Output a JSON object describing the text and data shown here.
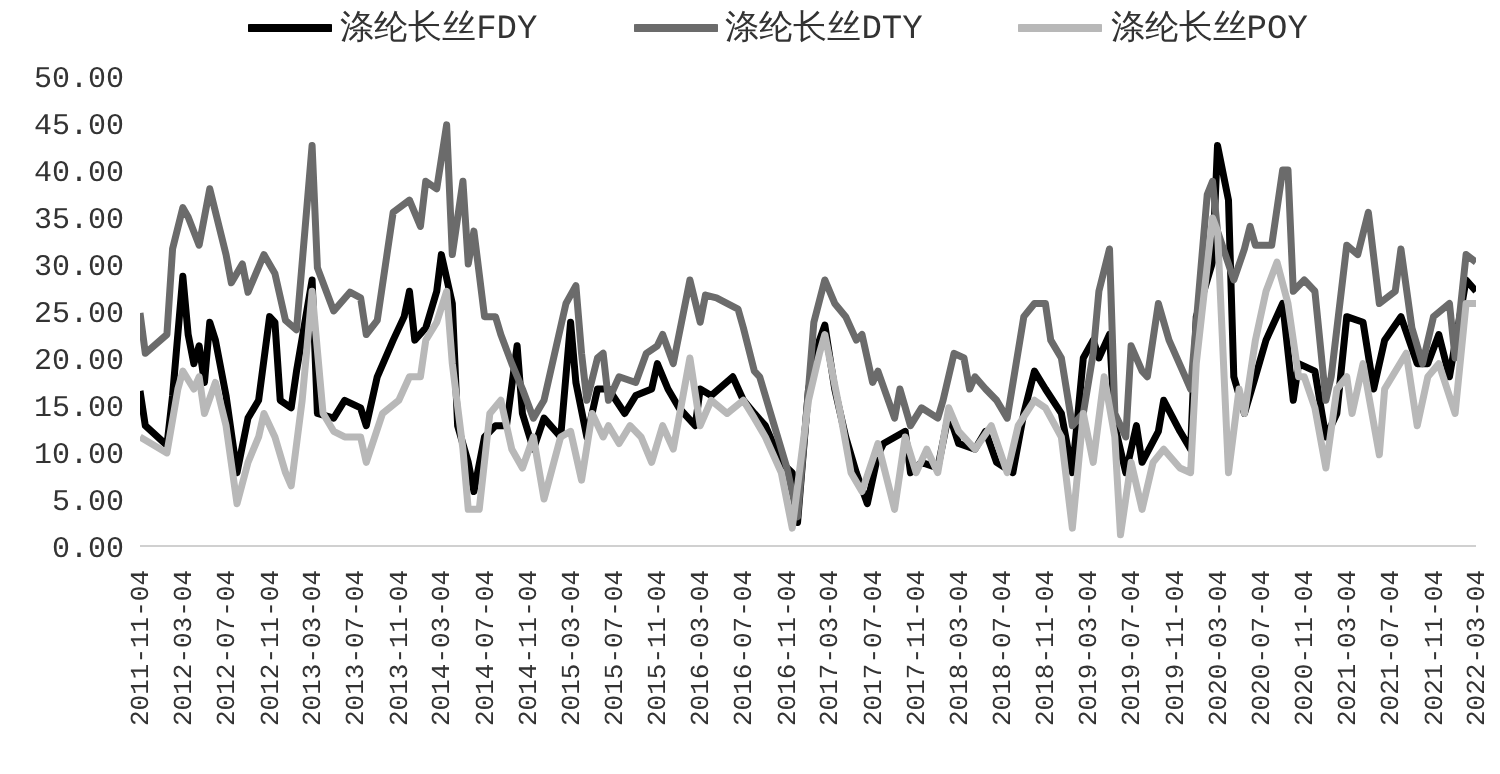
{
  "chart_data": {
    "type": "line",
    "legend": "top",
    "grid": false,
    "marker": "none",
    "line_style": "solid",
    "xlim": [
      "2011-11-04",
      "2022-03-04"
    ],
    "xticks": [
      "2011-11-04",
      "2012-03-04",
      "2012-07-04",
      "2012-11-04",
      "2013-03-04",
      "2013-07-04",
      "2013-11-04",
      "2014-03-04",
      "2014-07-04",
      "2014-11-04",
      "2015-03-04",
      "2015-07-04",
      "2015-11-04",
      "2016-03-04",
      "2016-07-04",
      "2016-11-04",
      "2017-03-04",
      "2017-07-04",
      "2017-11-04",
      "2018-03-04",
      "2018-07-04",
      "2018-11-04",
      "2019-03-04",
      "2019-07-04",
      "2019-11-04",
      "2020-03-04",
      "2020-07-04",
      "2020-11-04",
      "2021-03-04",
      "2021-07-04",
      "2021-11-04",
      "2022-03-04"
    ],
    "ylim": [
      0,
      50
    ],
    "yticks": [
      {
        "value": 0,
        "label": "0.00"
      },
      {
        "value": 5,
        "label": "5.00"
      },
      {
        "value": 10,
        "label": "10.00"
      },
      {
        "value": 15,
        "label": "15.00"
      },
      {
        "value": 20,
        "label": "20.00"
      },
      {
        "value": 25,
        "label": "25.00"
      },
      {
        "value": 30,
        "label": "30.00"
      },
      {
        "value": 35,
        "label": "35.00"
      },
      {
        "value": 40,
        "label": "40.00"
      },
      {
        "value": 45,
        "label": "45.00"
      },
      {
        "value": 50,
        "label": "50.00"
      }
    ],
    "series": [
      {
        "name": "涤纶长丝FDY",
        "color": "#000000",
        "x": [
          "2011-11-04",
          "2011-11-19",
          "2012-01-19",
          "2012-02-04",
          "2012-03-04",
          "2012-03-19",
          "2012-04-04",
          "2012-04-19",
          "2012-05-04",
          "2012-05-19",
          "2012-06-04",
          "2012-07-04",
          "2012-08-04",
          "2012-09-04",
          "2012-10-04",
          "2012-11-04",
          "2012-11-19",
          "2012-12-04",
          "2013-01-04",
          "2013-01-19",
          "2013-03-04",
          "2013-03-19",
          "2013-05-04",
          "2013-06-04",
          "2013-07-19",
          "2013-08-04",
          "2013-09-04",
          "2013-10-19",
          "2013-11-19",
          "2013-12-04",
          "2013-12-19",
          "2014-01-19",
          "2014-02-19",
          "2014-03-04",
          "2014-04-04",
          "2014-04-19",
          "2014-05-19",
          "2014-06-04",
          "2014-07-04",
          "2014-08-04",
          "2014-09-04",
          "2014-10-04",
          "2014-10-19",
          "2014-11-19",
          "2014-12-19",
          "2015-02-04",
          "2015-03-04",
          "2015-03-19",
          "2015-04-19",
          "2015-05-19",
          "2015-06-19",
          "2015-08-04",
          "2015-09-04",
          "2015-10-19",
          "2015-11-04",
          "2015-12-04",
          "2016-01-04",
          "2016-02-19",
          "2016-03-04",
          "2016-04-04",
          "2016-06-04",
          "2016-07-04",
          "2016-08-04",
          "2016-09-04",
          "2016-10-19",
          "2016-11-19",
          "2016-12-04",
          "2017-01-04",
          "2017-02-04",
          "2017-02-19",
          "2017-03-19",
          "2017-04-19",
          "2017-05-19",
          "2017-06-19",
          "2017-07-19",
          "2017-08-04",
          "2017-10-04",
          "2017-10-19",
          "2017-11-19",
          "2018-01-04",
          "2018-02-04",
          "2018-03-04",
          "2018-04-19",
          "2018-05-19",
          "2018-06-19",
          "2018-08-04",
          "2018-09-04",
          "2018-10-04",
          "2018-11-04",
          "2018-12-19",
          "2019-01-19",
          "2019-02-19",
          "2019-03-19",
          "2019-04-04",
          "2019-05-04",
          "2019-05-19",
          "2019-06-19",
          "2019-07-19",
          "2019-08-04",
          "2019-09-19",
          "2019-10-04",
          "2019-11-19",
          "2019-12-19",
          "2020-01-04",
          "2020-02-19",
          "2020-03-04",
          "2020-04-04",
          "2020-04-19",
          "2020-05-19",
          "2020-06-19",
          "2020-07-19",
          "2020-09-04",
          "2020-10-04",
          "2020-10-19",
          "2020-12-04",
          "2021-01-04",
          "2021-02-04",
          "2021-03-04",
          "2021-04-19",
          "2021-05-19",
          "2021-06-19",
          "2021-08-04",
          "2021-09-19",
          "2021-10-19",
          "2021-11-19",
          "2021-12-19",
          "2022-02-04",
          "2022-03-04"
        ],
        "values": [
          16.5,
          12.8,
          10.7,
          16,
          28.7,
          22.5,
          19.4,
          21.3,
          17.4,
          23.8,
          21.9,
          16,
          7.8,
          13.6,
          15.5,
          24.4,
          23.8,
          15.5,
          14.7,
          18.6,
          28.3,
          14.1,
          13.6,
          15.5,
          14.7,
          12.8,
          18,
          21.9,
          24.4,
          27.1,
          21.9,
          23.2,
          27.1,
          31,
          25.8,
          12.8,
          8.9,
          5.8,
          11.6,
          12.8,
          12.8,
          21.3,
          14.1,
          10.3,
          13.6,
          11.6,
          23.8,
          17.4,
          11.6,
          16.7,
          16.7,
          14.1,
          16,
          16.7,
          19.4,
          16.7,
          14.7,
          12.8,
          16.7,
          16,
          18,
          15.5,
          14.1,
          12.8,
          8.9,
          7.8,
          2.5,
          16.7,
          21.9,
          23.5,
          16.7,
          11.6,
          7.8,
          4.5,
          9.7,
          10.9,
          12.2,
          7.8,
          8.9,
          8.3,
          14.1,
          10.9,
          10.3,
          12.2,
          8.9,
          7.8,
          14.1,
          18.6,
          16.7,
          14.1,
          7.8,
          20,
          21.9,
          20,
          22.5,
          12.8,
          7.8,
          12.8,
          8.9,
          12.2,
          15.5,
          12.2,
          10.3,
          24.4,
          30.2,
          42.6,
          36.8,
          18,
          14.1,
          18,
          21.9,
          25.8,
          15.5,
          19.4,
          18.6,
          11.6,
          14.1,
          24.4,
          23.8,
          16.7,
          21.9,
          24.4,
          19.4,
          19.4,
          22.5,
          18,
          28.3,
          27.1
        ]
      },
      {
        "name": "涤纶长丝DTY",
        "color": "#6b6b6b",
        "x": [
          "2011-11-04",
          "2011-11-19",
          "2012-01-19",
          "2012-02-04",
          "2012-03-04",
          "2012-03-19",
          "2012-04-19",
          "2012-05-19",
          "2012-07-04",
          "2012-07-19",
          "2012-08-19",
          "2012-09-04",
          "2012-10-19",
          "2012-11-19",
          "2012-12-19",
          "2013-01-19",
          "2013-03-04",
          "2013-03-19",
          "2013-05-04",
          "2013-06-19",
          "2013-07-19",
          "2013-08-04",
          "2013-09-04",
          "2013-10-19",
          "2013-12-04",
          "2014-01-04",
          "2014-01-19",
          "2014-02-19",
          "2014-03-19",
          "2014-04-04",
          "2014-05-04",
          "2014-05-19",
          "2014-06-04",
          "2014-07-04",
          "2014-08-04",
          "2014-08-19",
          "2014-09-19",
          "2014-10-19",
          "2014-11-19",
          "2014-12-19",
          "2015-02-19",
          "2015-03-19",
          "2015-04-04",
          "2015-04-19",
          "2015-05-19",
          "2015-06-04",
          "2015-06-19",
          "2015-07-19",
          "2015-09-04",
          "2015-10-04",
          "2015-11-04",
          "2015-11-19",
          "2015-12-19",
          "2016-02-04",
          "2016-03-04",
          "2016-03-19",
          "2016-04-19",
          "2016-06-19",
          "2016-07-04",
          "2016-08-04",
          "2016-08-19",
          "2016-10-04",
          "2016-11-04",
          "2016-12-04",
          "2017-01-04",
          "2017-01-19",
          "2017-02-19",
          "2017-03-19",
          "2017-04-19",
          "2017-05-19",
          "2017-06-04",
          "2017-07-04",
          "2017-07-19",
          "2017-09-04",
          "2017-09-19",
          "2017-10-19",
          "2017-11-19",
          "2018-01-04",
          "2018-01-19",
          "2018-02-19",
          "2018-03-19",
          "2018-04-04",
          "2018-04-19",
          "2018-05-19",
          "2018-06-19",
          "2018-07-19",
          "2018-09-04",
          "2018-10-04",
          "2018-11-04",
          "2018-11-19",
          "2018-12-19",
          "2019-01-19",
          "2019-02-19",
          "2019-03-19",
          "2019-04-04",
          "2019-05-04",
          "2019-05-19",
          "2019-06-19",
          "2019-07-04",
          "2019-08-04",
          "2019-08-19",
          "2019-09-19",
          "2019-10-19",
          "2019-12-04",
          "2019-12-19",
          "2020-02-04",
          "2020-02-19",
          "2020-03-04",
          "2020-04-19",
          "2020-05-19",
          "2020-06-04",
          "2020-06-19",
          "2020-08-04",
          "2020-09-04",
          "2020-09-19",
          "2020-10-04",
          "2020-11-04",
          "2020-12-04",
          "2021-01-04",
          "2021-01-19",
          "2021-03-04",
          "2021-04-04",
          "2021-05-04",
          "2021-06-04",
          "2021-07-19",
          "2021-08-04",
          "2021-09-04",
          "2021-10-04",
          "2021-11-04",
          "2021-12-19",
          "2022-01-04",
          "2022-02-04",
          "2022-03-04"
        ],
        "values": [
          24.8,
          20.5,
          22.5,
          31.6,
          36,
          35,
          32,
          38,
          31,
          28,
          30,
          27,
          31,
          29,
          24,
          23,
          42.6,
          29.6,
          25,
          27,
          26.4,
          22.5,
          24,
          35.5,
          36.8,
          34,
          38.8,
          38,
          44.8,
          31,
          38.8,
          30,
          33.5,
          24.4,
          24.4,
          22.5,
          19.4,
          16.7,
          13.6,
          15.5,
          25.8,
          27.7,
          20.5,
          15.5,
          20,
          20.5,
          15.5,
          18,
          17.4,
          20.5,
          21.3,
          22.5,
          19.4,
          28.3,
          23.8,
          26.7,
          26.4,
          25.2,
          23.2,
          18.6,
          18,
          12.2,
          8.3,
          3.1,
          16.7,
          23.8,
          28.3,
          25.8,
          24.4,
          21.9,
          22.5,
          17.4,
          18.6,
          13.6,
          16.7,
          12.8,
          14.7,
          13.6,
          15.5,
          20.5,
          20,
          16.7,
          18,
          16.7,
          15.5,
          13.6,
          24.4,
          25.8,
          25.8,
          21.9,
          20,
          12.8,
          14.1,
          20.5,
          27.1,
          31.6,
          14.1,
          11.6,
          21.3,
          18.6,
          18,
          25.8,
          21.9,
          18,
          16.7,
          37.4,
          38.8,
          33.5,
          28.3,
          31.6,
          34,
          32,
          32,
          40,
          40,
          27.1,
          28.3,
          27.1,
          15.5,
          18,
          32,
          31,
          35.5,
          25.8,
          27.1,
          31.6,
          23.2,
          19.4,
          24.4,
          25.8,
          20,
          31,
          30.2
        ]
      },
      {
        "name": "涤纶长丝POY",
        "color": "#b8b8b8",
        "x": [
          "2011-11-04",
          "2012-01-19",
          "2012-02-19",
          "2012-03-04",
          "2012-04-04",
          "2012-04-19",
          "2012-05-04",
          "2012-06-04",
          "2012-07-04",
          "2012-08-04",
          "2012-09-04",
          "2012-10-04",
          "2012-10-19",
          "2012-11-19",
          "2012-12-19",
          "2013-01-04",
          "2013-02-04",
          "2013-03-04",
          "2013-04-04",
          "2013-05-04",
          "2013-06-04",
          "2013-07-19",
          "2013-08-04",
          "2013-09-19",
          "2013-11-04",
          "2013-12-04",
          "2014-01-04",
          "2014-01-19",
          "2014-02-19",
          "2014-03-19",
          "2014-04-04",
          "2014-05-04",
          "2014-05-19",
          "2014-06-19",
          "2014-07-19",
          "2014-08-19",
          "2014-09-19",
          "2014-10-19",
          "2014-11-19",
          "2014-12-19",
          "2015-02-04",
          "2015-03-04",
          "2015-04-04",
          "2015-05-04",
          "2015-06-04",
          "2015-06-19",
          "2015-07-19",
          "2015-08-19",
          "2015-09-19",
          "2015-10-19",
          "2015-11-19",
          "2015-12-19",
          "2016-02-04",
          "2016-03-04",
          "2016-04-04",
          "2016-05-19",
          "2016-07-04",
          "2016-08-04",
          "2016-09-04",
          "2016-10-19",
          "2016-11-19",
          "2017-01-04",
          "2017-02-04",
          "2017-02-19",
          "2017-04-04",
          "2017-05-04",
          "2017-06-04",
          "2017-07-19",
          "2017-09-04",
          "2017-10-04",
          "2017-11-04",
          "2017-12-04",
          "2018-01-04",
          "2018-02-04",
          "2018-03-04",
          "2018-04-19",
          "2018-06-04",
          "2018-07-19",
          "2018-08-19",
          "2018-10-04",
          "2018-11-04",
          "2018-12-19",
          "2019-01-19",
          "2019-02-19",
          "2019-03-19",
          "2019-04-19",
          "2019-05-19",
          "2019-06-04",
          "2019-07-04",
          "2019-08-04",
          "2019-09-04",
          "2019-10-04",
          "2019-11-19",
          "2019-12-19",
          "2020-01-04",
          "2020-02-19",
          "2020-03-04",
          "2020-04-04",
          "2020-05-04",
          "2020-05-19",
          "2020-06-19",
          "2020-07-19",
          "2020-08-19",
          "2020-09-19",
          "2020-10-19",
          "2020-11-04",
          "2020-12-04",
          "2021-01-04",
          "2021-02-04",
          "2021-03-04",
          "2021-03-19",
          "2021-04-19",
          "2021-06-04",
          "2021-06-19",
          "2021-08-19",
          "2021-09-19",
          "2021-10-19",
          "2021-11-19",
          "2022-01-04",
          "2022-02-04",
          "2022-03-04"
        ],
        "values": [
          11.6,
          9.9,
          16.7,
          18.6,
          16.7,
          18,
          14.1,
          17.4,
          12.8,
          4.5,
          8.9,
          11.6,
          14.1,
          11.6,
          7.8,
          6.4,
          15.5,
          27.1,
          14.1,
          12.2,
          11.6,
          11.6,
          8.9,
          14.1,
          15.5,
          18,
          18,
          21.9,
          23.8,
          27.1,
          19.4,
          10.3,
          3.9,
          3.9,
          14.1,
          15.5,
          10.3,
          8.3,
          11.6,
          5,
          11.6,
          12.2,
          7,
          14.1,
          11.6,
          12.8,
          10.9,
          12.8,
          11.6,
          8.9,
          12.8,
          10.3,
          20,
          12.8,
          15.5,
          14.1,
          15.5,
          13.6,
          11.6,
          7.8,
          1.9,
          15.5,
          20.5,
          22.5,
          14.1,
          7.8,
          5.8,
          10.9,
          3.9,
          11.6,
          7.8,
          10.3,
          7.8,
          14.7,
          12.2,
          10.3,
          12.8,
          7.8,
          12.8,
          15.5,
          14.7,
          11.6,
          1.9,
          14.1,
          8.9,
          18,
          11.6,
          1.2,
          8.9,
          3.9,
          8.9,
          10.3,
          8.3,
          7.8,
          19.4,
          34.9,
          33.5,
          7.8,
          16.7,
          14.1,
          21.9,
          27.1,
          30.2,
          25.8,
          18,
          18,
          14.7,
          8.3,
          16.7,
          18,
          14.1,
          19.4,
          9.7,
          16.7,
          20.5,
          12.8,
          18,
          19.4,
          14.1,
          25.8,
          25.8
        ]
      }
    ]
  }
}
